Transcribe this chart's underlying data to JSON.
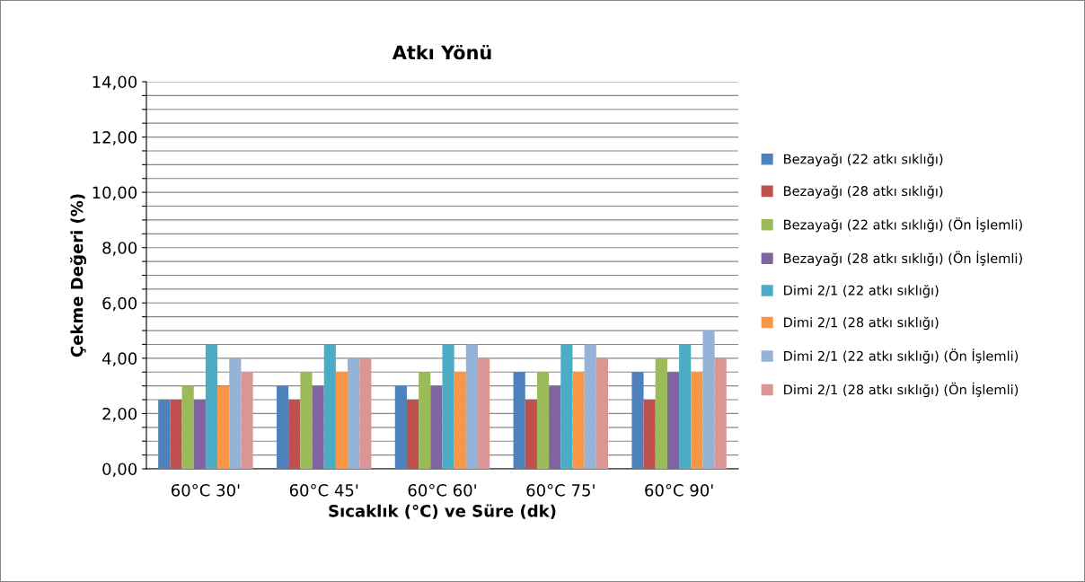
{
  "chart_data": {
    "type": "bar",
    "title": "Atkı Yönü",
    "xlabel": "Sıcaklık (°C) ve Süre (dk)",
    "ylabel": "Çekme Değeri (%)",
    "categories": [
      "60°C 30'",
      "60°C 45'",
      "60°C 60'",
      "60°C 75'",
      "60°C 90'"
    ],
    "series": [
      {
        "name": "Bezayağı (22 atkı sıklığı)",
        "color": "#4f81bd",
        "values": [
          2.5,
          3,
          3,
          3.5,
          3.5
        ]
      },
      {
        "name": "Bezayağı (28 atkı sıklığı)",
        "color": "#c0504d",
        "values": [
          2.5,
          2.5,
          2.5,
          2.5,
          2.5
        ]
      },
      {
        "name": "Bezayağı (22 atkı sıklığı) (Ön İşlemli)",
        "color": "#9bbb59",
        "values": [
          3,
          3.5,
          3.5,
          3.5,
          4
        ]
      },
      {
        "name": "Bezayağı (28 atkı sıklığı) (Ön İşlemli)",
        "color": "#8064a2",
        "values": [
          2.5,
          3,
          3,
          3,
          3.5
        ]
      },
      {
        "name": "Dimi 2/1 (22 atkı sıklığı)",
        "color": "#4bacc6",
        "values": [
          4.5,
          4.5,
          4.5,
          4.5,
          4.5
        ]
      },
      {
        "name": "Dimi 2/1 (28 atkı sıklığı)",
        "color": "#f79646",
        "values": [
          3,
          3.5,
          3.5,
          3.5,
          3.5
        ]
      },
      {
        "name": "Dimi 2/1 (22 atkı sıklığı) (Ön İşlemli)",
        "color": "#95b3d7",
        "values": [
          4,
          4,
          4.5,
          4.5,
          5
        ]
      },
      {
        "name": "Dimi 2/1 (28 atkı sıklığı) (Ön İşlemli)",
        "color": "#d99694",
        "values": [
          3.5,
          4,
          4,
          4,
          4
        ]
      }
    ],
    "ylim": [
      0,
      14
    ],
    "yticks": [
      {
        "value": 0,
        "label": "0,00"
      },
      {
        "value": 0.5,
        "label": null
      },
      {
        "value": 1,
        "label": null
      },
      {
        "value": 1.5,
        "label": null
      },
      {
        "value": 2,
        "label": "2,00"
      },
      {
        "value": 2.5,
        "label": null
      },
      {
        "value": 3,
        "label": null
      },
      {
        "value": 3.5,
        "label": null
      },
      {
        "value": 4,
        "label": "4,00"
      },
      {
        "value": 4.5,
        "label": null
      },
      {
        "value": 5,
        "label": null
      },
      {
        "value": 5.5,
        "label": null
      },
      {
        "value": 6,
        "label": "6,00"
      },
      {
        "value": 6.5,
        "label": null
      },
      {
        "value": 7,
        "label": null
      },
      {
        "value": 7.5,
        "label": null
      },
      {
        "value": 8,
        "label": "8,00"
      },
      {
        "value": 8.5,
        "label": null
      },
      {
        "value": 9,
        "label": null
      },
      {
        "value": 9.5,
        "label": null
      },
      {
        "value": 10,
        "label": "10,00"
      },
      {
        "value": 10.5,
        "label": null
      },
      {
        "value": 11,
        "label": null
      },
      {
        "value": 11.5,
        "label": null
      },
      {
        "value": 12,
        "label": "12,00"
      },
      {
        "value": 12.5,
        "label": null
      },
      {
        "value": 13,
        "label": null
      },
      {
        "value": 13.5,
        "label": null
      },
      {
        "value": 14,
        "label": "14,00"
      }
    ],
    "grid": "y",
    "legend": "right"
  }
}
